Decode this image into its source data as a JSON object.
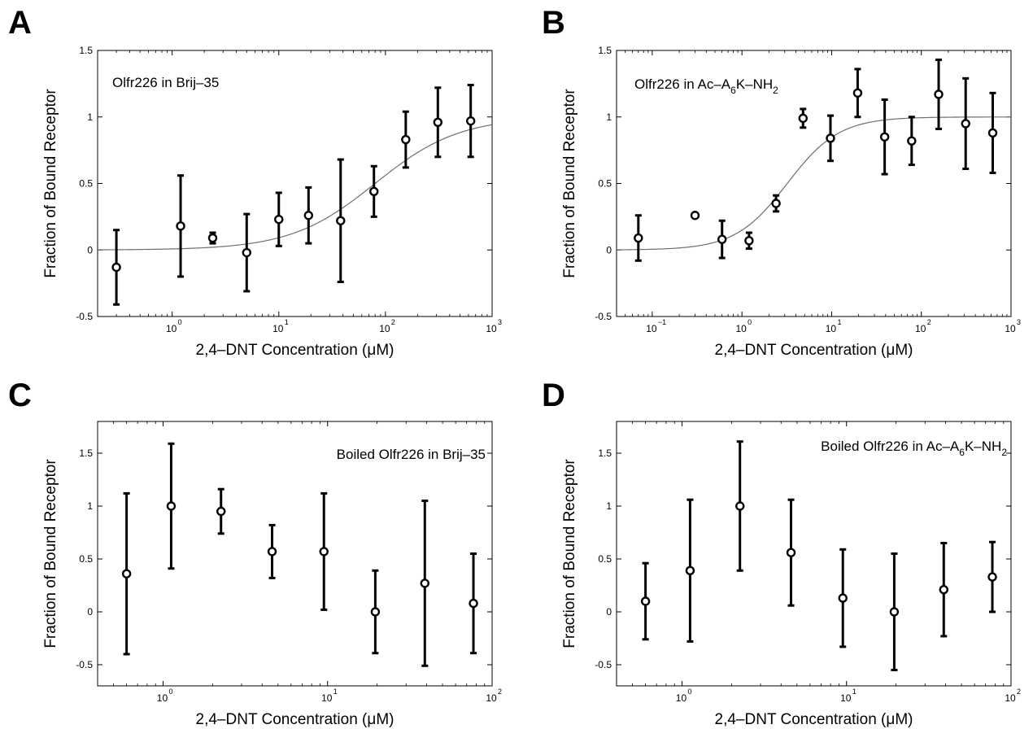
{
  "chart_data": [
    {
      "panel": "A",
      "type": "scatter",
      "x_scale": "log",
      "xlim": [
        0.2,
        1000
      ],
      "ylim": [
        -0.5,
        1.5
      ],
      "y_ticks": [
        -0.5,
        0,
        0.5,
        1,
        1.5
      ],
      "x_ticks": [
        1,
        10,
        100,
        1000
      ],
      "x_tick_labels": [
        [
          "10",
          "0"
        ],
        [
          "10",
          "1"
        ],
        [
          "10",
          "2"
        ],
        [
          "10",
          "3"
        ]
      ],
      "xlabel": "2,4–DNT Concentration (μM)",
      "ylabel": "Fraction of Bound Receptor",
      "annotation": [
        "Olfr226 in Brij–35"
      ],
      "annotation_position": "top-left",
      "grid": false,
      "points": [
        {
          "x": 0.3,
          "y": -0.13,
          "err": 0.28
        },
        {
          "x": 1.2,
          "y": 0.18,
          "err": 0.38
        },
        {
          "x": 2.4,
          "y": 0.09,
          "err": 0.04
        },
        {
          "x": 5,
          "y": -0.02,
          "err": 0.29
        },
        {
          "x": 10,
          "y": 0.23,
          "err": 0.2
        },
        {
          "x": 19,
          "y": 0.26,
          "err": 0.21
        },
        {
          "x": 38,
          "y": 0.22,
          "err": 0.46
        },
        {
          "x": 78,
          "y": 0.44,
          "err": 0.19
        },
        {
          "x": 155,
          "y": 0.83,
          "err": 0.21
        },
        {
          "x": 310,
          "y": 0.96,
          "err": 0.26
        },
        {
          "x": 630,
          "y": 0.97,
          "err": 0.27
        }
      ],
      "fit": {
        "shape": "sigmoid",
        "kd": 80,
        "hill": 1.1,
        "top": 1
      }
    },
    {
      "panel": "B",
      "type": "scatter",
      "x_scale": "log",
      "xlim": [
        0.04,
        1000
      ],
      "ylim": [
        -0.5,
        1.5
      ],
      "y_ticks": [
        -0.5,
        0,
        0.5,
        1,
        1.5
      ],
      "x_ticks": [
        0.1,
        1,
        10,
        100,
        1000
      ],
      "x_tick_labels": [
        [
          "10",
          "−1"
        ],
        [
          "10",
          "0"
        ],
        [
          "10",
          "1"
        ],
        [
          "10",
          "2"
        ],
        [
          "10",
          "3"
        ]
      ],
      "xlabel": "2,4–DNT Concentration (μM)",
      "ylabel": "Fraction of Bound Receptor",
      "annotation": [
        "Olfr226 in Ac–A",
        "6",
        "K–NH",
        "2"
      ],
      "annotation_position": "top-left",
      "grid": false,
      "points": [
        {
          "x": 0.07,
          "y": 0.09,
          "err": 0.17
        },
        {
          "x": 0.3,
          "y": 0.26,
          "err": 0.01
        },
        {
          "x": 0.6,
          "y": 0.08,
          "err": 0.14
        },
        {
          "x": 1.2,
          "y": 0.07,
          "err": 0.06
        },
        {
          "x": 2.4,
          "y": 0.35,
          "err": 0.06
        },
        {
          "x": 4.8,
          "y": 0.99,
          "err": 0.07
        },
        {
          "x": 9.7,
          "y": 0.84,
          "err": 0.17
        },
        {
          "x": 19.5,
          "y": 1.18,
          "err": 0.18
        },
        {
          "x": 39,
          "y": 0.85,
          "err": 0.28
        },
        {
          "x": 78,
          "y": 0.82,
          "err": 0.18
        },
        {
          "x": 156,
          "y": 1.17,
          "err": 0.26
        },
        {
          "x": 312,
          "y": 0.95,
          "err": 0.34
        },
        {
          "x": 625,
          "y": 0.88,
          "err": 0.3
        }
      ],
      "fit": {
        "shape": "sigmoid",
        "kd": 3.2,
        "hill": 1.5,
        "top": 1
      }
    },
    {
      "panel": "C",
      "type": "scatter",
      "x_scale": "log",
      "xlim": [
        0.4,
        100
      ],
      "ylim": [
        -0.7,
        1.8
      ],
      "y_ticks": [
        -0.5,
        0,
        0.5,
        1,
        1.5
      ],
      "x_ticks": [
        1,
        10,
        100
      ],
      "x_tick_labels": [
        [
          "10",
          "0"
        ],
        [
          "10",
          "1"
        ],
        [
          "10",
          "2"
        ]
      ],
      "xlabel": "2,4–DNT Concentration (μM)",
      "ylabel": "Fraction of Bound Receptor",
      "annotation": [
        "Boiled Olfr226 in Brij–35"
      ],
      "annotation_position": "top-right",
      "grid": false,
      "points": [
        {
          "x": 0.6,
          "y": 0.36,
          "err": 0.76
        },
        {
          "x": 1.12,
          "y": 1.0,
          "err": 0.59
        },
        {
          "x": 2.25,
          "y": 0.95,
          "err": 0.21
        },
        {
          "x": 4.6,
          "y": 0.57,
          "err": 0.25
        },
        {
          "x": 9.5,
          "y": 0.57,
          "err": 0.55
        },
        {
          "x": 19.5,
          "y": 0.0,
          "err": 0.39
        },
        {
          "x": 39,
          "y": 0.27,
          "err": 0.78
        },
        {
          "x": 77,
          "y": 0.08,
          "err": 0.47
        }
      ]
    },
    {
      "panel": "D",
      "type": "scatter",
      "x_scale": "log",
      "xlim": [
        0.4,
        100
      ],
      "ylim": [
        -0.7,
        1.8
      ],
      "y_ticks": [
        -0.5,
        0,
        0.5,
        1,
        1.5
      ],
      "x_ticks": [
        1,
        10,
        100
      ],
      "x_tick_labels": [
        [
          "10",
          "0"
        ],
        [
          "10",
          "1"
        ],
        [
          "10",
          "2"
        ]
      ],
      "xlabel": "2,4–DNT Concentration (μM)",
      "ylabel": "Fraction of Bound Receptor",
      "annotation": [
        "Boiled Olfr226 in Ac–A",
        "6",
        "K–NH",
        "2"
      ],
      "annotation_position": "top-right",
      "grid": false,
      "points": [
        {
          "x": 0.6,
          "y": 0.1,
          "err": 0.36
        },
        {
          "x": 1.12,
          "y": 0.39,
          "err": 0.67
        },
        {
          "x": 2.25,
          "y": 1.0,
          "err": 0.61
        },
        {
          "x": 4.6,
          "y": 0.56,
          "err": 0.5
        },
        {
          "x": 9.5,
          "y": 0.13,
          "err": 0.46
        },
        {
          "x": 19.5,
          "y": 0.0,
          "err": 0.55
        },
        {
          "x": 39,
          "y": 0.21,
          "err": 0.44
        },
        {
          "x": 77,
          "y": 0.33,
          "err": 0.33
        }
      ]
    }
  ]
}
